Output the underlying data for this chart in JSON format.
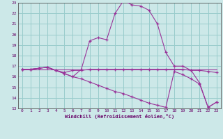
{
  "xlabel": "Windchill (Refroidissement éolien,°C)",
  "bg_color": "#cce8e8",
  "grid_color": "#99cccc",
  "line_color": "#993399",
  "xlim": [
    -0.5,
    23.5
  ],
  "ylim": [
    13,
    23
  ],
  "yticks": [
    13,
    14,
    15,
    16,
    17,
    18,
    19,
    20,
    21,
    22,
    23
  ],
  "xticks": [
    0,
    1,
    2,
    3,
    4,
    5,
    6,
    7,
    8,
    9,
    10,
    11,
    12,
    13,
    14,
    15,
    16,
    17,
    18,
    19,
    20,
    21,
    22,
    23
  ],
  "line1_x": [
    0,
    1,
    2,
    3,
    4,
    5,
    6,
    7,
    8,
    9,
    10,
    11,
    12,
    13,
    14,
    15,
    16,
    17,
    18,
    19,
    20,
    21,
    22,
    23
  ],
  "line1_y": [
    16.7,
    16.7,
    16.8,
    16.9,
    16.6,
    16.3,
    16.0,
    16.7,
    19.4,
    19.7,
    19.5,
    22.0,
    23.2,
    22.8,
    22.7,
    22.3,
    21.0,
    18.3,
    17.0,
    17.0,
    16.6,
    15.4,
    13.1,
    13.6
  ],
  "line2_x": [
    0,
    1,
    2,
    3,
    4,
    5,
    6,
    7,
    8,
    9,
    10,
    11,
    12,
    13,
    14,
    15,
    16,
    17,
    18,
    19,
    20,
    21,
    22,
    23
  ],
  "line2_y": [
    16.7,
    16.7,
    16.8,
    16.9,
    16.6,
    16.4,
    16.6,
    16.6,
    16.7,
    16.7,
    16.7,
    16.7,
    16.7,
    16.7,
    16.7,
    16.7,
    16.7,
    16.7,
    16.7,
    16.7,
    16.6,
    16.6,
    16.5,
    16.4
  ],
  "line3_x": [
    0,
    23
  ],
  "line3_y": [
    16.7,
    16.7
  ],
  "line4_x": [
    0,
    1,
    2,
    3,
    4,
    5,
    6,
    7,
    8,
    9,
    10,
    11,
    12,
    13,
    14,
    15,
    16,
    17,
    18,
    19,
    20,
    21,
    22,
    23
  ],
  "line4_y": [
    16.7,
    16.7,
    16.8,
    16.9,
    16.6,
    16.3,
    16.0,
    15.8,
    15.5,
    15.2,
    14.9,
    14.6,
    14.4,
    14.1,
    13.8,
    13.5,
    13.3,
    13.1,
    16.5,
    16.2,
    15.8,
    15.3,
    13.1,
    13.6
  ]
}
